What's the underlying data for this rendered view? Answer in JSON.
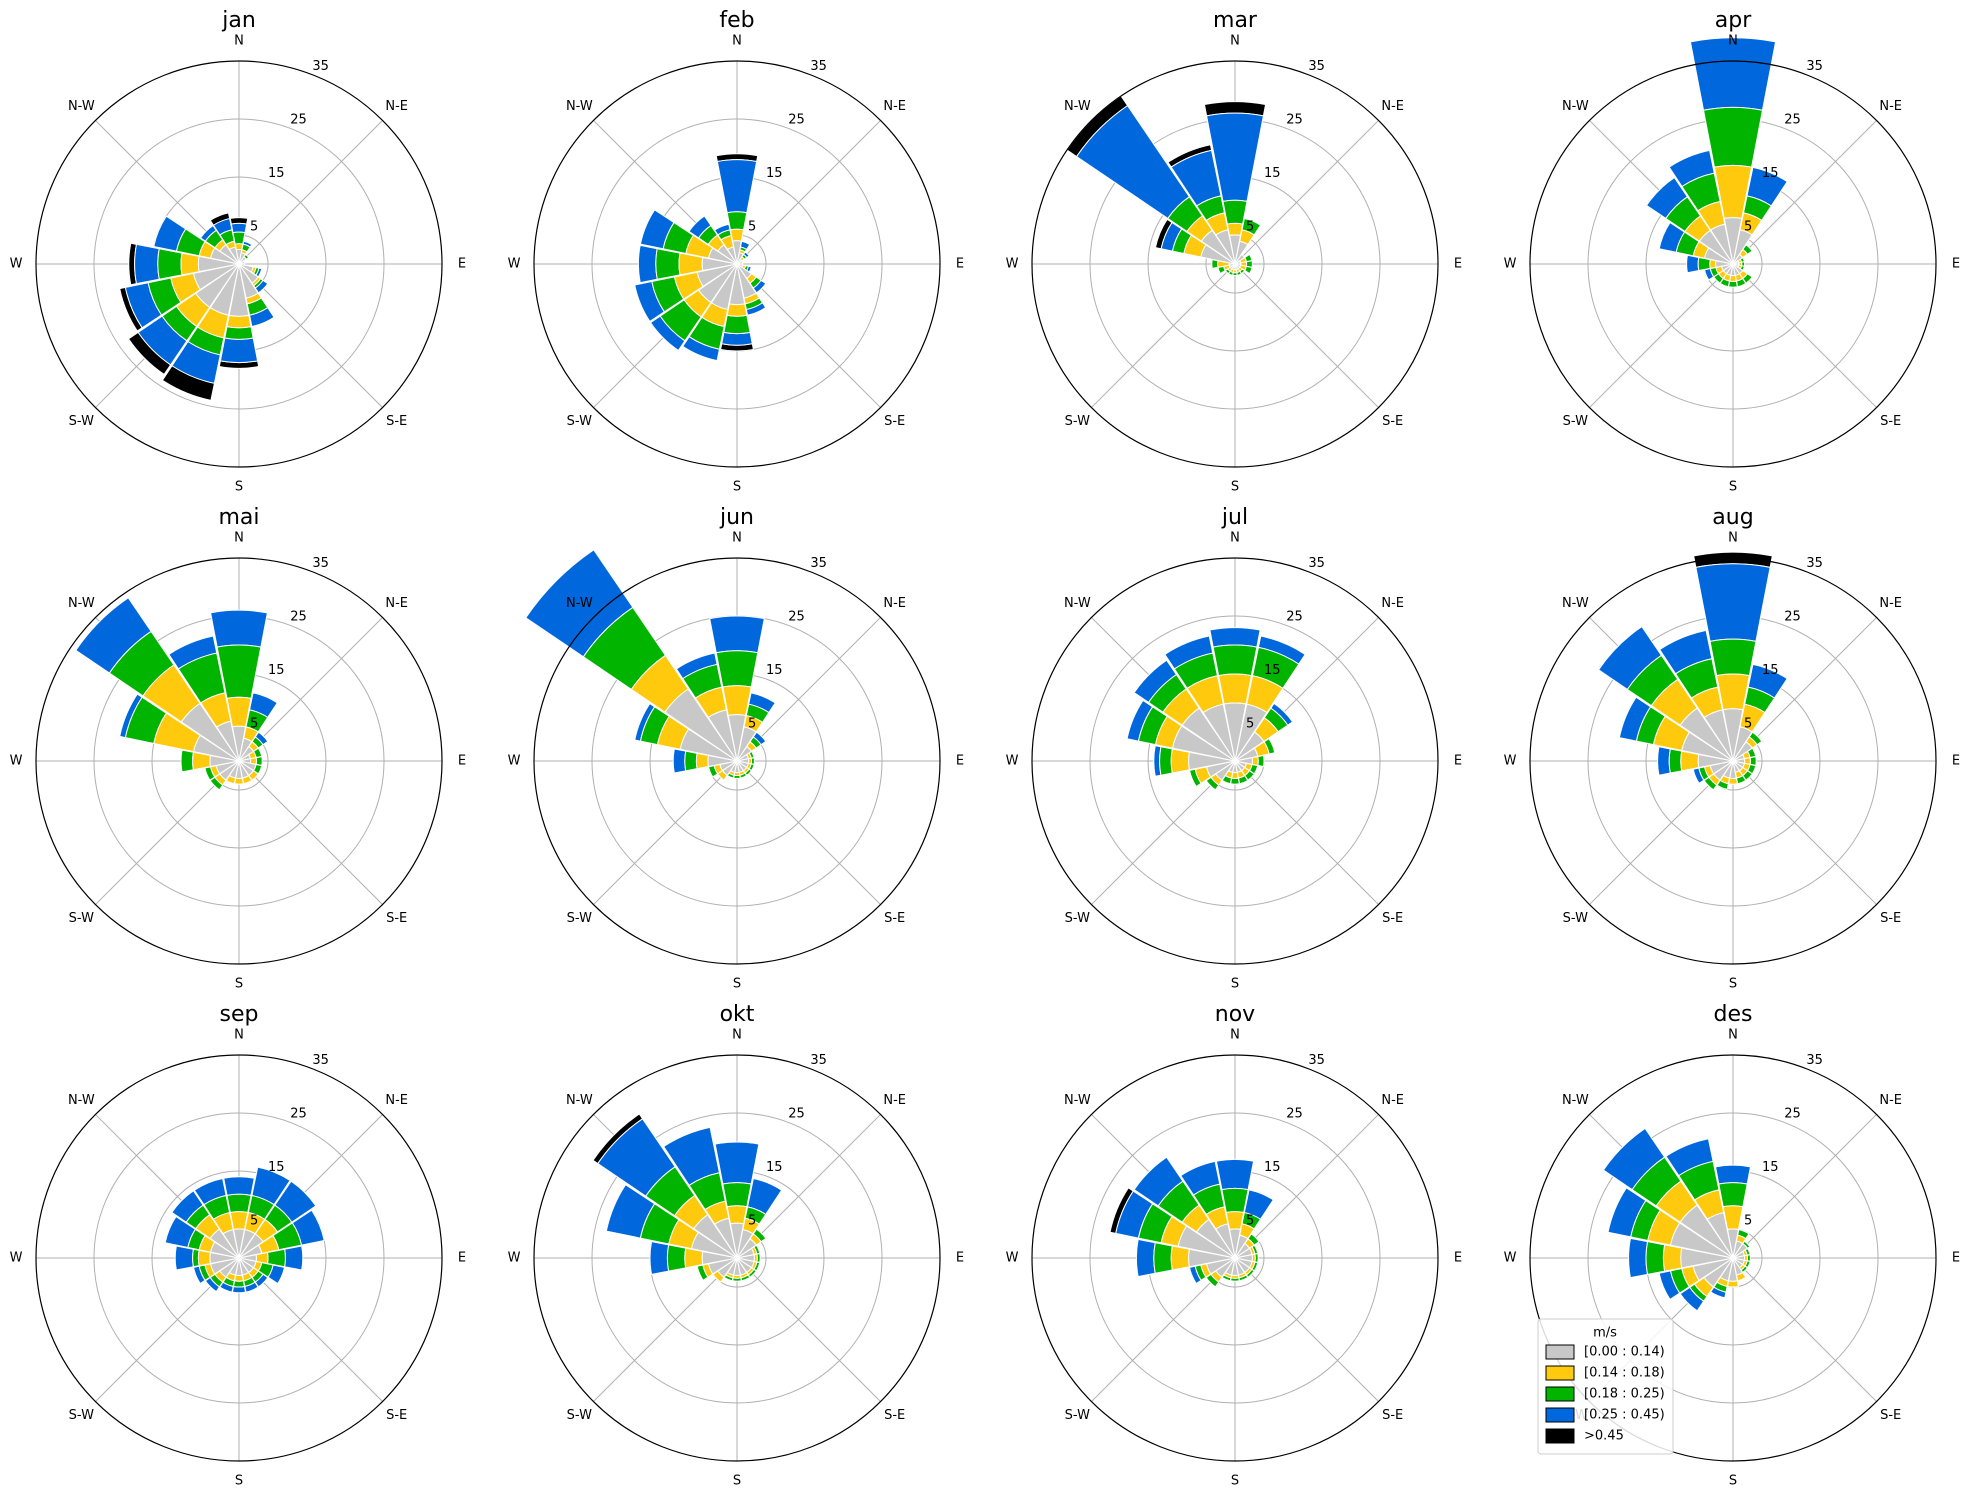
{
  "chart_data": {
    "type": "windrose",
    "directions": [
      "N",
      "N-E",
      "E",
      "S-E",
      "S",
      "S-W",
      "W",
      "N-W"
    ],
    "radial_ticks": [
      "5",
      "15",
      "25",
      "35"
    ],
    "rmax": 35,
    "legend": {
      "title": "m/s",
      "placement": "lower-left of des panel",
      "bins": [
        {
          "label": "[0.00 : 0.14)",
          "color": "#c8c8c8"
        },
        {
          "label": "[0.14 : 0.18)",
          "color": "#ffc90e"
        },
        {
          "label": "[0.18 : 0.25)",
          "color": "#00b400"
        },
        {
          "label": "[0.25 : 0.45)",
          "color": "#0068dc"
        },
        {
          "label": ">0.45",
          "color": "#000000"
        }
      ]
    },
    "note": "Sectors are 22.5 degrees wide starting at N, clockwise. Values are cumulative radii per speed bin.",
    "panels": [
      {
        "title": "jan",
        "bins": [
          [
            2.5,
            2,
            1.5,
            1,
            1,
            2.5,
            4,
            6,
            9,
            9,
            9,
            8,
            7,
            5,
            4,
            3
          ],
          [
            3.5,
            2.5,
            1.5,
            1,
            1,
            3,
            4.5,
            7,
            11,
            13,
            13,
            12,
            10,
            7,
            5,
            4
          ],
          [
            5.5,
            3.5,
            2,
            1,
            1,
            3.5,
            5,
            9,
            13,
            16,
            16,
            16,
            14,
            11,
            7,
            6
          ],
          [
            7,
            4,
            2,
            1,
            1,
            4,
            6,
            11,
            17,
            21,
            21,
            20,
            18,
            15,
            8,
            8
          ],
          [
            8,
            4,
            2,
            1,
            1,
            4,
            6,
            11,
            18,
            24,
            23,
            21,
            19,
            15,
            8,
            9
          ]
        ]
      },
      {
        "title": "feb",
        "bins": [
          [
            4,
            2,
            1,
            1,
            1,
            1,
            3,
            6,
            7,
            8,
            8,
            7,
            6,
            5,
            4,
            3
          ],
          [
            6,
            2.5,
            1.5,
            1,
            1,
            1.5,
            4,
            7,
            9,
            11,
            11,
            11,
            10,
            9,
            6,
            5
          ],
          [
            9,
            3,
            2,
            1,
            1,
            2,
            5,
            8,
            12,
            15,
            16,
            15,
            14,
            13,
            8,
            6
          ],
          [
            18,
            4,
            2.5,
            1,
            1,
            2.5,
            6,
            9,
            14,
            17,
            18,
            18,
            17,
            17,
            10,
            7
          ],
          [
            19,
            4,
            2.5,
            1,
            1,
            2.5,
            6,
            9,
            15,
            17,
            18,
            18,
            17,
            17,
            10,
            7
          ]
        ]
      },
      {
        "title": "mar",
        "bins": [
          [
            5,
            4,
            2,
            1,
            1,
            1,
            1,
            1,
            1,
            1,
            1,
            1,
            1,
            6,
            7,
            6
          ],
          [
            7,
            6,
            2,
            2,
            2,
            2,
            1.5,
            1.5,
            1.5,
            1.5,
            1.5,
            2,
            3,
            9,
            10,
            9
          ],
          [
            11,
            8,
            2,
            3,
            3,
            3,
            2,
            2,
            2,
            2,
            2,
            3,
            4,
            11,
            14,
            12
          ],
          [
            26,
            8,
            2,
            3,
            3,
            3,
            2,
            2,
            2,
            2,
            2,
            3,
            4,
            13,
            33,
            20
          ],
          [
            28,
            8,
            2,
            3,
            3,
            3,
            2,
            2,
            2,
            2,
            2,
            3,
            4,
            14,
            35,
            21
          ]
        ]
      },
      {
        "title": "apr",
        "bins": [
          [
            8,
            6,
            2,
            1,
            1,
            1,
            2,
            2,
            2,
            2,
            2,
            2,
            3,
            5,
            7,
            7
          ],
          [
            17,
            9,
            3,
            1.5,
            1.5,
            1.5,
            3,
            3,
            3,
            3,
            3,
            3,
            4,
            7,
            10,
            11
          ],
          [
            27,
            12,
            4,
            2,
            2,
            2,
            4,
            4,
            4,
            4,
            4,
            4,
            6,
            10,
            14,
            16
          ],
          [
            39,
            17,
            4,
            2,
            2,
            2,
            4,
            4,
            4,
            4,
            4,
            5,
            8,
            13,
            18,
            20
          ],
          [
            39,
            17,
            4,
            2,
            2,
            2,
            4,
            4,
            4,
            4,
            4,
            5,
            8,
            13,
            18,
            20
          ]
        ]
      },
      {
        "title": "mai",
        "bins": [
          [
            6,
            4,
            3,
            2,
            2,
            3,
            3,
            3,
            3,
            3,
            4,
            4,
            5,
            8,
            12,
            7
          ],
          [
            11,
            6,
            4,
            3,
            3,
            3,
            4,
            4,
            4,
            4,
            5,
            5,
            8,
            15,
            20,
            12
          ],
          [
            20,
            9,
            5,
            4,
            4,
            4,
            4,
            4,
            4,
            4,
            6,
            6,
            10,
            20,
            27,
            19
          ],
          [
            26,
            12,
            6,
            4,
            4,
            4,
            4,
            4,
            4,
            4,
            6,
            6,
            10,
            21,
            34,
            22
          ],
          [
            26,
            12,
            6,
            4,
            4,
            4,
            4,
            4,
            4,
            4,
            6,
            6,
            10,
            21,
            34,
            22
          ]
        ]
      },
      {
        "title": "jun",
        "bins": [
          [
            8,
            6,
            3,
            2,
            2,
            2,
            2,
            2,
            2,
            2,
            3,
            3,
            5,
            10,
            15,
            9
          ],
          [
            13,
            8,
            4,
            2.5,
            2.5,
            2.5,
            2.5,
            2.5,
            2.5,
            2.5,
            4,
            4,
            7,
            14,
            22,
            13
          ],
          [
            19,
            10,
            5,
            3,
            3,
            3,
            3,
            3,
            3,
            3,
            4,
            5,
            9,
            17,
            32,
            17
          ],
          [
            25,
            12,
            6,
            3,
            3,
            3,
            3,
            3,
            3,
            3,
            4,
            5,
            11,
            18,
            44,
            19
          ],
          [
            25,
            12,
            6,
            3,
            3,
            3,
            3,
            3,
            3,
            3,
            4,
            5,
            11,
            18,
            44,
            19
          ]
        ]
      },
      {
        "title": "jul",
        "bins": [
          [
            10,
            10,
            6,
            4,
            3,
            2,
            2,
            2,
            2,
            2,
            4,
            5,
            8,
            11,
            11,
            10
          ],
          [
            15,
            15,
            9,
            6,
            4,
            3,
            3,
            3,
            3,
            3,
            5,
            7,
            11,
            14,
            15,
            15
          ],
          [
            20,
            20,
            11,
            7,
            5,
            4,
            4,
            4,
            4,
            4,
            6,
            8,
            13,
            17,
            18,
            19
          ],
          [
            23,
            22,
            12,
            7,
            5,
            4,
            4,
            4,
            4,
            4,
            6,
            8,
            14,
            19,
            21,
            22
          ],
          [
            23,
            22,
            12,
            7,
            5,
            4,
            4,
            4,
            4,
            4,
            6,
            8,
            14,
            19,
            21,
            22
          ]
        ]
      },
      {
        "title": "aug",
        "bins": [
          [
            9,
            6,
            4,
            2,
            2,
            2,
            2,
            2,
            3,
            3,
            4,
            4,
            6,
            9,
            11,
            9
          ],
          [
            15,
            10,
            5,
            3,
            3,
            3,
            3,
            3,
            4,
            4,
            5,
            5,
            9,
            14,
            17,
            13
          ],
          [
            21,
            13,
            6,
            4,
            4,
            4,
            4,
            4,
            4,
            5,
            6,
            6,
            11,
            17,
            22,
            18
          ],
          [
            34,
            17,
            6,
            4,
            4,
            4,
            4,
            4,
            4,
            5,
            6,
            7,
            13,
            20,
            28,
            23
          ],
          [
            36,
            17,
            6,
            4,
            4,
            4,
            4,
            4,
            4,
            5,
            6,
            7,
            13,
            20,
            28,
            23
          ]
        ]
      },
      {
        "title": "sep",
        "bins": [
          [
            5,
            5,
            5,
            4,
            3,
            3,
            3,
            3,
            3,
            3,
            4,
            5,
            5,
            5,
            6,
            5
          ],
          [
            8,
            8,
            8,
            7,
            5,
            4,
            4,
            4,
            4,
            4,
            5,
            6,
            7,
            7,
            9,
            8
          ],
          [
            11,
            11,
            11,
            11,
            8,
            6,
            5,
            5,
            5,
            5,
            6,
            7,
            8,
            9,
            11,
            11
          ],
          [
            14,
            16,
            16,
            15,
            11,
            8,
            6,
            6,
            6,
            6,
            7,
            8,
            11,
            13,
            14,
            14
          ],
          [
            14,
            16,
            16,
            15,
            11,
            8,
            6,
            6,
            6,
            6,
            7,
            8,
            11,
            13,
            14,
            14
          ]
        ]
      },
      {
        "title": "okt",
        "bins": [
          [
            6,
            5,
            4,
            3,
            3,
            3,
            3,
            3,
            3,
            3,
            4,
            5,
            6,
            8,
            9,
            7
          ],
          [
            9,
            7,
            5,
            3.5,
            3.5,
            3.5,
            3.5,
            3.5,
            3.5,
            3.5,
            5,
            6,
            9,
            12,
            13,
            10
          ],
          [
            13,
            9,
            6,
            4,
            4,
            4,
            4,
            4,
            4,
            4,
            5,
            7,
            12,
            17,
            19,
            15
          ],
          [
            20,
            14,
            6,
            4,
            4,
            4,
            4,
            4,
            4,
            4,
            5,
            7,
            15,
            23,
            29,
            23
          ],
          [
            20,
            14,
            6,
            4,
            4,
            4,
            4,
            4,
            4,
            4,
            5,
            7,
            15,
            23,
            30,
            23
          ]
        ]
      },
      {
        "title": "nov",
        "bins": [
          [
            5,
            4,
            3,
            3,
            3,
            3,
            3,
            3,
            3,
            3,
            4,
            5,
            8,
            10,
            8,
            6
          ],
          [
            8,
            6,
            4,
            3.5,
            3.5,
            3.5,
            3.5,
            3.5,
            3.5,
            3.5,
            5,
            6,
            11,
            13,
            11,
            9
          ],
          [
            12,
            8,
            5,
            4,
            4,
            4,
            4,
            4,
            4,
            4,
            6,
            7,
            14,
            17,
            16,
            13
          ],
          [
            17,
            12,
            5,
            4,
            4,
            4,
            4,
            4,
            4,
            4,
            6,
            8,
            17,
            21,
            21,
            17
          ],
          [
            17,
            12,
            5,
            4,
            4,
            4,
            4,
            4,
            4,
            4,
            6,
            8,
            17,
            22,
            21,
            17
          ]
        ]
      },
      {
        "title": "des",
        "bins": [
          [
            5,
            3,
            3,
            2,
            2,
            2,
            2,
            3,
            4,
            4,
            6,
            7,
            9,
            11,
            11,
            8
          ],
          [
            9,
            4,
            3,
            2.5,
            2.5,
            2.5,
            2.5,
            4,
            5,
            5,
            8,
            9,
            12,
            15,
            16,
            12
          ],
          [
            13,
            5,
            3.5,
            3,
            3,
            3,
            3,
            4,
            5,
            6,
            9,
            11,
            15,
            18,
            21,
            17
          ],
          [
            16,
            5,
            3.5,
            3,
            3,
            3,
            3,
            4,
            5,
            7,
            11,
            13,
            18,
            22,
            27,
            21
          ],
          [
            16,
            5,
            3.5,
            3,
            3,
            3,
            3,
            4,
            5,
            7,
            11,
            13,
            18,
            22,
            27,
            21
          ]
        ]
      }
    ]
  }
}
